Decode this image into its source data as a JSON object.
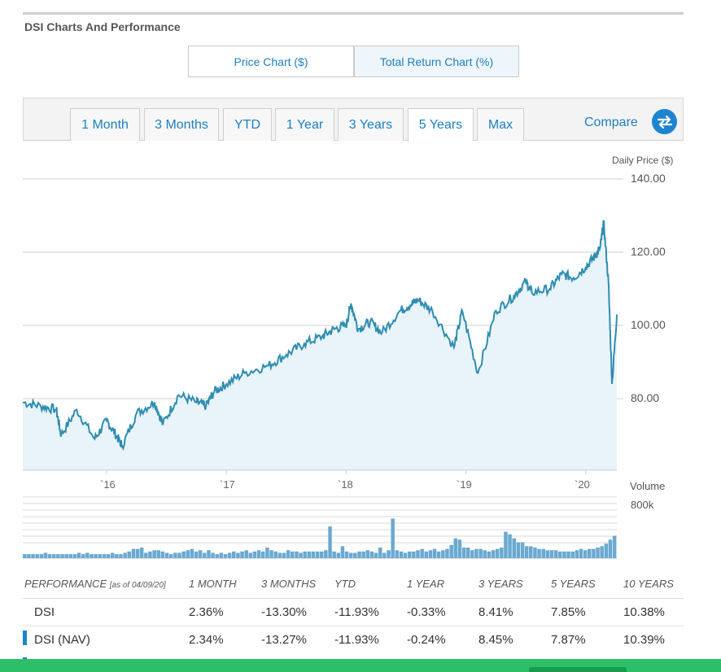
{
  "section": {
    "title": "DSI Charts And Performance"
  },
  "chart_toggle": {
    "price_label": "Price Chart ($)",
    "total_label": "Total Return Chart (%)"
  },
  "ranges": [
    "1 Month",
    "3 Months",
    "YTD",
    "1 Year",
    "3 Years",
    "5 Years",
    "Max"
  ],
  "active_range": "5 Years",
  "compare": {
    "label": "Compare",
    "icon": "swap-arrows-icon"
  },
  "colors": {
    "accent": "#1d7fc0",
    "line": "#2e8db0",
    "volume": "#6aa9d1",
    "fill": "#e9f3fa",
    "green": "#2dbf68"
  },
  "chart_data": {
    "type": "line",
    "title": "Daily Price ($)",
    "ylabel": "Daily Price ($)",
    "ylim": [
      62,
      140
    ],
    "y_ticks": [
      "140.00",
      "120.00",
      "100.00",
      "80.00"
    ],
    "x_tick_labels": [
      "`16",
      "`17",
      "`18",
      "`19",
      "`20"
    ],
    "x": [
      2015.3,
      2015.45,
      2015.58,
      2015.62,
      2015.75,
      2015.9,
      2016.0,
      2016.08,
      2016.13,
      2016.25,
      2016.4,
      2016.47,
      2016.6,
      2016.75,
      2016.83,
      2016.9,
      2017.0,
      2017.15,
      2017.35,
      2017.5,
      2017.65,
      2017.8,
      2017.9,
      2018.0,
      2018.04,
      2018.1,
      2018.2,
      2018.3,
      2018.45,
      2018.55,
      2018.6,
      2018.72,
      2018.9,
      2018.97,
      2019.1,
      2019.25,
      2019.4,
      2019.5,
      2019.55,
      2019.7,
      2019.8,
      2019.9,
      2020.0,
      2020.08,
      2020.12,
      2020.15,
      2020.19,
      2020.22,
      2020.26
    ],
    "values": [
      79,
      78,
      77,
      70,
      77,
      69,
      74,
      70,
      67,
      76,
      79,
      73,
      81,
      79,
      78,
      82,
      84,
      87,
      89,
      92,
      95,
      97,
      99,
      100,
      106,
      99,
      101,
      98,
      104,
      106,
      107,
      104,
      94,
      104,
      87,
      104,
      108,
      112,
      109,
      110,
      114,
      113,
      116,
      119,
      121,
      128,
      112,
      84,
      103
    ],
    "volume": {
      "label": "Volume",
      "tick": "800k",
      "values": [
        3,
        3,
        3,
        3,
        3,
        4,
        3,
        3,
        3,
        3,
        3,
        3,
        3,
        4,
        3,
        4,
        3,
        3,
        3,
        3,
        3,
        4,
        3,
        3,
        4,
        5,
        7,
        7,
        8,
        4,
        5,
        6,
        6,
        5,
        4,
        3,
        4,
        4,
        5,
        6,
        7,
        5,
        6,
        4,
        6,
        4,
        3,
        4,
        3,
        4,
        5,
        4,
        5,
        6,
        4,
        5,
        6,
        5,
        8,
        6,
        5,
        4,
        4,
        6,
        5,
        5,
        4,
        5,
        5,
        5,
        5,
        5,
        6,
        24,
        5,
        4,
        9,
        5,
        4,
        4,
        5,
        5,
        6,
        5,
        4,
        8,
        4,
        6,
        30,
        6,
        5,
        4,
        5,
        5,
        6,
        7,
        5,
        6,
        7,
        5,
        6,
        7,
        10,
        15,
        14,
        8,
        8,
        6,
        7,
        7,
        6,
        5,
        6,
        7,
        8,
        20,
        18,
        15,
        12,
        12,
        9,
        9,
        8,
        7,
        7,
        6,
        6,
        6,
        5,
        5,
        5,
        5,
        6,
        7,
        6,
        7,
        7,
        8,
        9,
        11,
        14,
        17
      ]
    }
  },
  "performance": {
    "title": "PERFORMANCE",
    "as_of": "[as of 04/09/20]",
    "columns": [
      "1 MONTH",
      "3 MONTHS",
      "YTD",
      "1 YEAR",
      "3 YEARS",
      "5 YEARS",
      "10 YEARS"
    ],
    "rows": [
      {
        "name": "DSI",
        "values": [
          "2.36%",
          "-13.30%",
          "-11.93%",
          "-0.33%",
          "8.41%",
          "7.85%",
          "10.38%"
        ]
      },
      {
        "name": "DSI (NAV)",
        "values": [
          "2.34%",
          "-13.27%",
          "-11.93%",
          "-0.24%",
          "8.45%",
          "7.87%",
          "10.39%"
        ]
      }
    ]
  }
}
